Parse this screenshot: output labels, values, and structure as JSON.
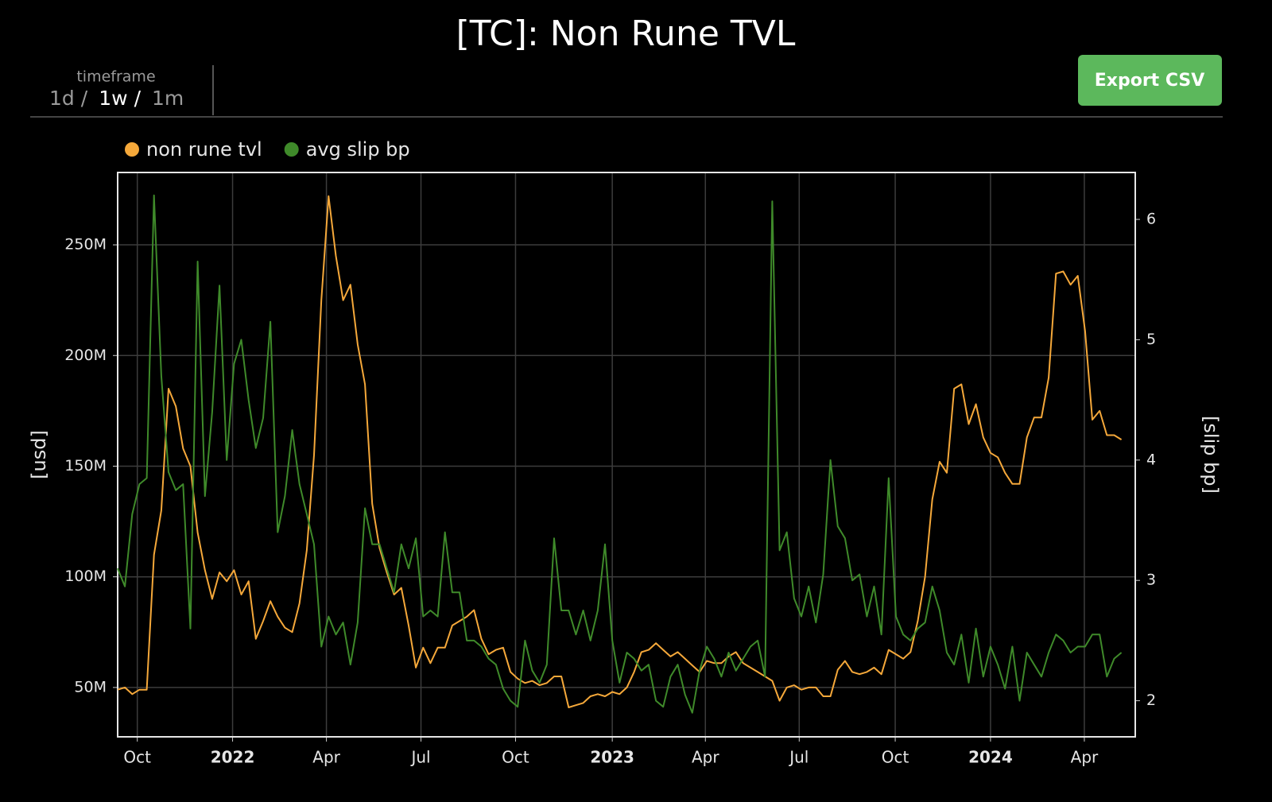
{
  "controls": {
    "timeframe_label": "timeframe",
    "timeframe_options": [
      "1d",
      "1w",
      "1m"
    ],
    "separator": "/",
    "selected": 1,
    "export_button": "Export CSV"
  },
  "chart_data": {
    "type": "line",
    "title": "[TC]: Non Rune TVL",
    "y_label": "[usd]",
    "y2_label": "[slip bp]",
    "grid": true,
    "legend": "top-left",
    "xlim": [
      -0.8,
      139.1
    ],
    "xticks": [
      {
        "value": 1.9,
        "label": "Oct"
      },
      {
        "value": 15.0,
        "label": "2022"
      },
      {
        "value": 27.9,
        "label": "Apr"
      },
      {
        "value": 40.9,
        "label": "Jul"
      },
      {
        "value": 53.9,
        "label": "Oct"
      },
      {
        "value": 67.2,
        "label": "2023"
      },
      {
        "value": 80.0,
        "label": "Apr"
      },
      {
        "value": 92.9,
        "label": "Jul"
      },
      {
        "value": 106.1,
        "label": "Oct"
      },
      {
        "value": 119.2,
        "label": "2024"
      },
      {
        "value": 132.1,
        "label": "Apr"
      }
    ],
    "ylim": [
      27700000.0,
      282700000.0
    ],
    "yticks": [
      {
        "value": 50000000.0,
        "label": "50M"
      },
      {
        "value": 100000000.0,
        "label": "100M"
      },
      {
        "value": 150000000.0,
        "label": "150M"
      },
      {
        "value": 200000000.0,
        "label": "200M"
      },
      {
        "value": 250000000.0,
        "label": "250M"
      }
    ],
    "y2lim": [
      1.7,
      6.39
    ],
    "y2ticks": [
      2,
      3,
      4,
      5,
      6
    ],
    "series": [
      {
        "name": "non rune tvl",
        "color": "#f5a83a",
        "values": [
          49000000.0,
          50000000.0,
          47000000.0,
          49000000.0,
          49000000.0,
          110000000.0,
          130000000.0,
          185000000.0,
          177000000.0,
          158000000.0,
          150000000.0,
          120000000.0,
          103000000.0,
          90000000.0,
          102000000.0,
          98000000.0,
          103000000.0,
          92000000.0,
          98000000.0,
          72000000.0,
          80000000.0,
          89000000.0,
          82000000.0,
          77000000.0,
          75000000.0,
          88000000.0,
          112000000.0,
          155000000.0,
          225000000.0,
          272000000.0,
          245000000.0,
          225000000.0,
          232000000.0,
          205000000.0,
          187000000.0,
          133000000.0,
          113000000.0,
          102000000.0,
          92000000.0,
          95000000.0,
          78000000.0,
          59000000.0,
          68000000.0,
          61000000.0,
          68000000.0,
          68000000.0,
          78000000.0,
          80000000.0,
          82000000.0,
          85000000.0,
          72000000.0,
          65000000.0,
          67000000.0,
          68000000.0,
          57000000.0,
          54000000.0,
          52000000.0,
          53000000.0,
          51000000.0,
          52000000.0,
          55000000.0,
          55000000.0,
          41000000.0,
          42000000.0,
          43000000.0,
          46000000.0,
          47000000.0,
          46000000.0,
          48000000.0,
          47000000.0,
          50000000.0,
          57000000.0,
          66000000.0,
          67000000.0,
          70000000.0,
          67000000.0,
          64000000.0,
          66000000.0,
          63000000.0,
          60000000.0,
          57000000.0,
          62000000.0,
          61000000.0,
          61000000.0,
          64000000.0,
          66000000.0,
          61000000.0,
          59000000.0,
          57000000.0,
          55000000.0,
          53000000.0,
          44000000.0,
          50000000.0,
          51000000.0,
          49000000.0,
          50000000.0,
          50000000.0,
          46000000.0,
          46000000.0,
          58000000.0,
          62000000.0,
          57000000.0,
          56000000.0,
          57000000.0,
          59000000.0,
          56000000.0,
          67000000.0,
          65000000.0,
          63000000.0,
          66000000.0,
          80000000.0,
          100000000.0,
          135000000.0,
          152000000.0,
          147000000.0,
          185000000.0,
          187000000.0,
          169000000.0,
          178000000.0,
          163000000.0,
          156000000.0,
          154000000.0,
          147000000.0,
          142000000.0,
          142000000.0,
          163000000.0,
          172000000.0,
          172000000.0,
          190000000.0,
          237000000.0,
          238000000.0,
          232000000.0,
          236000000.0,
          211000000.0,
          171000000.0,
          175000000.0,
          164000000.0,
          164000000.0,
          162000000.0
        ]
      },
      {
        "name": "avg slip bp",
        "color": "#3f8a2a",
        "axis": "y2",
        "values": [
          3.1,
          2.95,
          3.55,
          3.8,
          3.85,
          6.2,
          4.7,
          3.9,
          3.75,
          3.8,
          2.6,
          5.65,
          3.7,
          4.4,
          5.45,
          4.0,
          4.8,
          5.0,
          4.5,
          4.1,
          4.35,
          5.15,
          3.4,
          3.7,
          4.25,
          3.8,
          3.55,
          3.3,
          2.45,
          2.7,
          2.55,
          2.65,
          2.3,
          2.65,
          3.6,
          3.3,
          3.3,
          3.1,
          2.9,
          3.3,
          3.1,
          3.35,
          2.7,
          2.75,
          2.7,
          3.4,
          2.9,
          2.9,
          2.5,
          2.5,
          2.45,
          2.35,
          2.3,
          2.1,
          2.0,
          1.95,
          2.5,
          2.25,
          2.15,
          2.3,
          3.35,
          2.75,
          2.75,
          2.55,
          2.75,
          2.5,
          2.75,
          3.3,
          2.5,
          2.15,
          2.4,
          2.35,
          2.25,
          2.3,
          2.0,
          1.95,
          2.2,
          2.3,
          2.05,
          1.9,
          2.25,
          2.45,
          2.35,
          2.2,
          2.4,
          2.25,
          2.35,
          2.45,
          2.5,
          2.2,
          6.15,
          3.25,
          3.4,
          2.85,
          2.7,
          2.95,
          2.65,
          3.05,
          4.0,
          3.45,
          3.35,
          3.0,
          3.05,
          2.7,
          2.95,
          2.55,
          3.85,
          2.7,
          2.55,
          2.5,
          2.6,
          2.65,
          2.95,
          2.75,
          2.4,
          2.3,
          2.55,
          2.15,
          2.6,
          2.2,
          2.45,
          2.3,
          2.1,
          2.45,
          2.0,
          2.4,
          2.3,
          2.2,
          2.4,
          2.55,
          2.5,
          2.4,
          2.45,
          2.45,
          2.55,
          2.55,
          2.2,
          2.35,
          2.4
        ]
      }
    ]
  }
}
